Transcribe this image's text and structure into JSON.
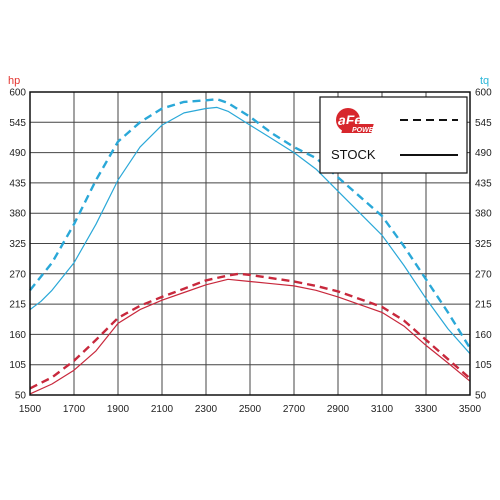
{
  "chart_data": {
    "type": "line",
    "title": "",
    "xlabel": "",
    "ylabel_left": "hp",
    "ylabel_right": "tq",
    "xlim": [
      1500,
      3500
    ],
    "ylim": [
      50,
      600
    ],
    "x_ticks": [
      "1500",
      "1700",
      "1900",
      "2100",
      "2300",
      "2500",
      "2700",
      "2900",
      "3100",
      "3300",
      "3500"
    ],
    "y_ticks": [
      "50",
      "105",
      "160",
      "215",
      "270",
      "325",
      "380",
      "435",
      "490",
      "545",
      "600"
    ],
    "grid": true,
    "legend": {
      "placement": "top-right",
      "logo_text": "aFe POWER",
      "entries": [
        {
          "label": "",
          "style": "dashed"
        },
        {
          "label": "STOCK",
          "style": "solid"
        }
      ]
    },
    "colors": {
      "hp_label": "#e3342f",
      "tq_label": "#29b6d8",
      "torque": "#2aa8d8",
      "horsepower": "#c8283c",
      "background": "#ffffff",
      "grid": "#444444",
      "logo": "#d7262c"
    },
    "series": [
      {
        "group": "torque",
        "style": "dashed",
        "x": [
          1500,
          1600,
          1700,
          1800,
          1900,
          2000,
          2100,
          2200,
          2300,
          2350,
          2400,
          2500,
          2600,
          2700,
          2800,
          2900,
          3000,
          3100,
          3200,
          3300,
          3400,
          3500
        ],
        "y": [
          240,
          290,
          360,
          440,
          510,
          545,
          570,
          582,
          585,
          587,
          580,
          555,
          525,
          500,
          480,
          445,
          410,
          375,
          320,
          260,
          200,
          135
        ]
      },
      {
        "group": "torque",
        "style": "solid",
        "x": [
          1500,
          1550,
          1600,
          1700,
          1800,
          1900,
          2000,
          2100,
          2200,
          2300,
          2350,
          2400,
          2500,
          2600,
          2700,
          2800,
          2900,
          3000,
          3100,
          3200,
          3300,
          3400,
          3500
        ],
        "y": [
          205,
          220,
          240,
          290,
          360,
          440,
          500,
          540,
          562,
          570,
          572,
          565,
          540,
          515,
          490,
          460,
          420,
          380,
          340,
          285,
          225,
          170,
          125
        ]
      },
      {
        "group": "horsepower",
        "style": "dashed",
        "x": [
          1500,
          1600,
          1700,
          1800,
          1900,
          2000,
          2100,
          2200,
          2300,
          2400,
          2450,
          2500,
          2600,
          2700,
          2800,
          2900,
          3000,
          3100,
          3200,
          3300,
          3400,
          3500
        ],
        "y": [
          62,
          82,
          112,
          150,
          190,
          212,
          228,
          243,
          258,
          267,
          270,
          268,
          262,
          256,
          248,
          238,
          224,
          210,
          185,
          150,
          115,
          80
        ]
      },
      {
        "group": "horsepower",
        "style": "solid",
        "x": [
          1500,
          1600,
          1700,
          1800,
          1900,
          2000,
          2100,
          2200,
          2300,
          2400,
          2500,
          2600,
          2700,
          2800,
          2900,
          3000,
          3100,
          3200,
          3300,
          3400,
          3500
        ],
        "y": [
          52,
          70,
          95,
          130,
          180,
          205,
          222,
          236,
          250,
          260,
          256,
          252,
          248,
          240,
          228,
          214,
          200,
          175,
          140,
          108,
          75
        ]
      }
    ]
  }
}
